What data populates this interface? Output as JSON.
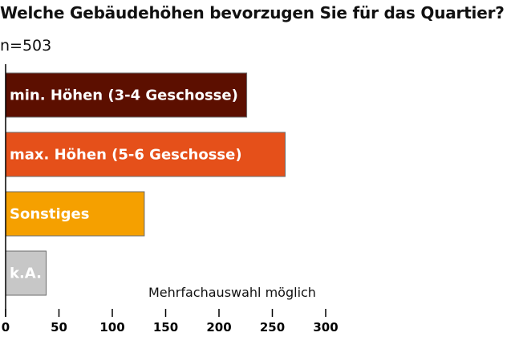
{
  "chart_data": {
    "type": "bar",
    "orientation": "horizontal",
    "title": "Welche Gebäudehöhen bevorzugen Sie für das Quartier?",
    "subtitle": "n=503",
    "annotation": "Mehrfachauswahl möglich",
    "categories": [
      "min. Höhen (3-4 Geschosse)",
      "max. Höhen (5-6 Geschosse)",
      "Sonstiges",
      "k.A."
    ],
    "values": [
      226,
      262,
      130,
      38
    ],
    "colors": [
      "#5c0f00",
      "#e5501a",
      "#f5a000",
      "#c7c7c7"
    ],
    "xlim": [
      0,
      300
    ],
    "xticks": [
      0,
      50,
      100,
      150,
      200,
      250,
      300
    ],
    "grid": false,
    "legend": "none"
  }
}
